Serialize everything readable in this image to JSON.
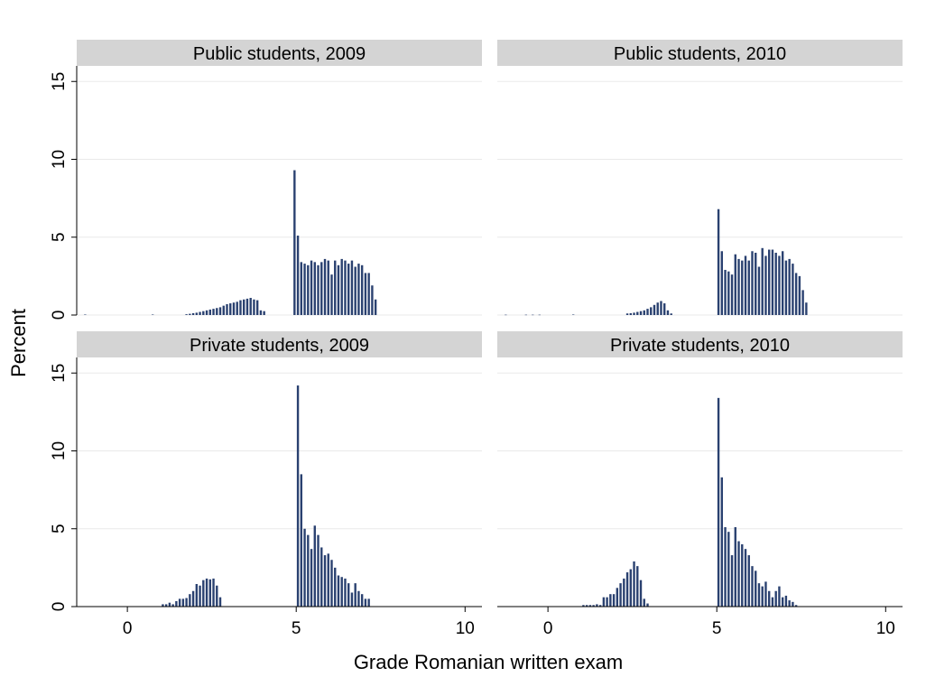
{
  "chart_data": {
    "type": "bar",
    "xlabel": "Grade Romanian written exam",
    "ylabel": "Percent",
    "xlim": [
      -1.5,
      10.5
    ],
    "ylim": [
      0,
      16
    ],
    "x_ticks": [
      "0",
      "5",
      "10"
    ],
    "y_ticks": [
      "0",
      "5",
      "10",
      "15"
    ],
    "colors": {
      "bar": "#2a4170",
      "strip": "#d4d4d4",
      "grid": "#eaeaea"
    },
    "panels": [
      {
        "title": "Public students, 2009",
        "x": [
          -1.25,
          0.75,
          1.75,
          1.85,
          1.95,
          2.05,
          2.15,
          2.25,
          2.35,
          2.45,
          2.55,
          2.65,
          2.75,
          2.85,
          2.95,
          3.05,
          3.15,
          3.25,
          3.35,
          3.45,
          3.55,
          3.65,
          3.75,
          3.85,
          3.95,
          4.05,
          4.15,
          4.25,
          4.35,
          4.45,
          4.55,
          4.65,
          4.75,
          4.85,
          4.95,
          5.05,
          5.15,
          5.25,
          5.35,
          5.45,
          5.55,
          5.65,
          5.75,
          5.85,
          5.95,
          6.05,
          6.15,
          6.25,
          6.35,
          6.45,
          6.55,
          6.65,
          6.75,
          6.85,
          6.95,
          7.05,
          7.15,
          7.25,
          7.35,
          7.45,
          7.55,
          7.65,
          7.75,
          7.85,
          7.95,
          8.05,
          8.15,
          8.25,
          8.35,
          8.45,
          8.55,
          8.65,
          8.75,
          8.85,
          8.95,
          9.05,
          9.15,
          9.25,
          9.35,
          9.45,
          9.55,
          9.65,
          9.75,
          9.85,
          9.95
        ],
        "values": [
          0.03,
          0.03,
          0.05,
          0.08,
          0.12,
          0.15,
          0.2,
          0.25,
          0.3,
          0.35,
          0.4,
          0.45,
          0.5,
          0.6,
          0.7,
          0.75,
          0.8,
          0.85,
          0.95,
          1.0,
          1.05,
          1.1,
          1.0,
          0.95,
          0.3,
          0.25,
          0.0,
          0.0,
          0.0,
          0.0,
          0.0,
          0.0,
          0.0,
          0.0,
          9.3,
          5.1,
          3.4,
          3.3,
          3.2,
          3.5,
          3.4,
          3.2,
          3.4,
          3.6,
          3.5,
          2.6,
          3.5,
          3.2,
          3.6,
          3.5,
          3.3,
          3.5,
          3.1,
          3.3,
          3.2,
          2.7,
          2.7,
          1.9,
          1.0,
          0.0,
          0.0,
          0.0,
          0.0,
          0.0,
          0.0,
          0.0,
          0.0,
          0.0,
          0.0,
          0.0,
          0.0,
          0.0,
          0.0,
          0.0,
          0.0,
          0.0,
          0.0,
          0.0,
          0.0,
          0.0,
          0.0,
          0.0,
          0.0,
          0.0,
          0.0
        ]
      },
      {
        "title": "Public students, 2010",
        "x": [
          -1.25,
          -0.65,
          -0.45,
          -0.25,
          0.75,
          2.35,
          2.45,
          2.55,
          2.65,
          2.75,
          2.85,
          2.95,
          3.05,
          3.15,
          3.25,
          3.35,
          3.45,
          3.55,
          3.65,
          3.75,
          3.85,
          3.95,
          4.05,
          4.15,
          4.25,
          4.35,
          4.45,
          4.55,
          4.65,
          4.75,
          4.85,
          4.95,
          5.05,
          5.15,
          5.25,
          5.35,
          5.45,
          5.55,
          5.65,
          5.75,
          5.85,
          5.95,
          6.05,
          6.15,
          6.25,
          6.35,
          6.45,
          6.55,
          6.65,
          6.75,
          6.85,
          6.95,
          7.05,
          7.15,
          7.25,
          7.35,
          7.45,
          7.55,
          7.65,
          7.75,
          7.85,
          7.95,
          8.05,
          8.15,
          8.25,
          8.35,
          8.45,
          8.55,
          8.65,
          8.75,
          8.85,
          8.95,
          9.05,
          9.15,
          9.25,
          9.35,
          9.45,
          9.55,
          9.65,
          9.75,
          9.85,
          9.95
        ],
        "values": [
          0.02,
          0.02,
          0.02,
          0.02,
          0.03,
          0.1,
          0.12,
          0.15,
          0.2,
          0.25,
          0.3,
          0.4,
          0.5,
          0.65,
          0.8,
          0.9,
          0.75,
          0.3,
          0.1,
          0.0,
          0.0,
          0.0,
          0.0,
          0.0,
          0.0,
          0.0,
          0.0,
          0.0,
          0.0,
          0.0,
          0.0,
          0.0,
          6.8,
          4.1,
          2.9,
          2.8,
          2.6,
          3.9,
          3.6,
          3.5,
          3.8,
          3.5,
          4.1,
          4.0,
          3.1,
          4.3,
          3.8,
          4.2,
          4.2,
          4.0,
          3.8,
          4.1,
          3.5,
          3.6,
          3.3,
          2.7,
          2.5,
          1.6,
          0.8,
          0.0,
          0.0,
          0.0,
          0.0,
          0.0,
          0.0,
          0.0,
          0.0,
          0.0,
          0.0,
          0.0,
          0.0,
          0.0,
          0.0,
          0.0,
          0.0,
          0.0,
          0.0,
          0.0,
          0.0,
          0.0,
          0.0,
          0.0
        ]
      },
      {
        "title": "Private students, 2009",
        "x": [
          1.05,
          1.15,
          1.25,
          1.35,
          1.45,
          1.55,
          1.65,
          1.75,
          1.85,
          1.95,
          2.05,
          2.15,
          2.25,
          2.35,
          2.45,
          2.55,
          2.65,
          2.75,
          2.85,
          2.95,
          3.05,
          3.15,
          3.25,
          3.35,
          3.45,
          3.55,
          3.65,
          3.75,
          3.85,
          3.95,
          4.05,
          4.15,
          4.25,
          4.35,
          4.45,
          4.55,
          4.65,
          4.75,
          4.85,
          4.95,
          5.05,
          5.15,
          5.25,
          5.35,
          5.45,
          5.55,
          5.65,
          5.75,
          5.85,
          5.95,
          6.05,
          6.15,
          6.25,
          6.35,
          6.45,
          6.55,
          6.65,
          6.75,
          6.85,
          6.95,
          7.05,
          7.15,
          7.25,
          7.35,
          7.45,
          7.55,
          7.65,
          7.75,
          7.85,
          7.95,
          8.05,
          8.15,
          8.25,
          8.35,
          8.45,
          8.55,
          8.65,
          8.75,
          8.85,
          8.95,
          9.05,
          9.15,
          9.25,
          9.35,
          9.45,
          9.55,
          9.65,
          9.75,
          9.85,
          9.95
        ],
        "values": [
          0.15,
          0.15,
          0.25,
          0.15,
          0.35,
          0.5,
          0.5,
          0.55,
          0.8,
          1.0,
          1.45,
          1.35,
          1.7,
          1.8,
          1.75,
          1.8,
          1.35,
          0.6,
          0.0,
          0.0,
          0.0,
          0.0,
          0.0,
          0.0,
          0.0,
          0.0,
          0.0,
          0.0,
          0.0,
          0.0,
          0.0,
          0.0,
          0.0,
          0.0,
          0.0,
          0.0,
          0.0,
          0.0,
          0.0,
          0.0,
          14.2,
          8.5,
          5.0,
          4.6,
          3.7,
          5.2,
          4.6,
          3.8,
          3.3,
          3.4,
          3.0,
          2.5,
          2.0,
          1.9,
          1.8,
          1.5,
          0.9,
          1.5,
          1.0,
          0.8,
          0.5,
          0.5,
          0.0,
          0.0,
          0.0,
          0.0,
          0.0,
          0.0,
          0.0,
          0.0,
          0.0,
          0.0,
          0.0,
          0.0,
          0.0,
          0.0,
          0.0,
          0.0,
          0.0,
          0.0,
          0.0,
          0.0,
          0.0,
          0.0,
          0.0,
          0.0,
          0.0,
          0.0,
          0.0,
          0.0
        ]
      },
      {
        "title": "Private students, 2010",
        "x": [
          1.05,
          1.15,
          1.25,
          1.35,
          1.45,
          1.55,
          1.65,
          1.75,
          1.85,
          1.95,
          2.05,
          2.15,
          2.25,
          2.35,
          2.45,
          2.55,
          2.65,
          2.75,
          2.85,
          2.95,
          3.05,
          3.15,
          3.25,
          3.35,
          3.45,
          3.55,
          3.65,
          3.75,
          3.85,
          3.95,
          4.05,
          4.15,
          4.25,
          4.35,
          4.45,
          4.55,
          4.65,
          4.75,
          4.85,
          4.95,
          5.05,
          5.15,
          5.25,
          5.35,
          5.45,
          5.55,
          5.65,
          5.75,
          5.85,
          5.95,
          6.05,
          6.15,
          6.25,
          6.35,
          6.45,
          6.55,
          6.65,
          6.75,
          6.85,
          6.95,
          7.05,
          7.15,
          7.25,
          7.35,
          7.45,
          7.55,
          7.65,
          7.75,
          7.85,
          7.95,
          8.05,
          8.15,
          8.25,
          8.35,
          8.45,
          8.55,
          8.65,
          8.75,
          8.85,
          8.95,
          9.05,
          9.15,
          9.25,
          9.35,
          9.45,
          9.55,
          9.65,
          9.75,
          9.85,
          9.95
        ],
        "values": [
          0.1,
          0.1,
          0.1,
          0.1,
          0.15,
          0.1,
          0.6,
          0.6,
          0.8,
          0.8,
          1.2,
          1.5,
          1.8,
          2.2,
          2.4,
          2.9,
          2.6,
          1.7,
          0.5,
          0.2,
          0.0,
          0.0,
          0.0,
          0.0,
          0.0,
          0.0,
          0.0,
          0.0,
          0.0,
          0.0,
          0.0,
          0.0,
          0.0,
          0.0,
          0.0,
          0.0,
          0.0,
          0.0,
          0.0,
          0.0,
          13.4,
          8.3,
          5.1,
          4.8,
          3.3,
          5.1,
          4.2,
          4.0,
          3.7,
          3.3,
          2.6,
          2.3,
          1.5,
          1.3,
          1.6,
          1.0,
          0.6,
          1.0,
          1.3,
          0.6,
          0.7,
          0.4,
          0.3,
          0.1,
          0.0,
          0.0,
          0.0,
          0.0,
          0.0,
          0.0,
          0.0,
          0.0,
          0.0,
          0.0,
          0.0,
          0.0,
          0.0,
          0.0,
          0.0,
          0.0,
          0.0,
          0.0,
          0.0,
          0.0,
          0.0,
          0.0,
          0.0,
          0.0,
          0.0,
          0.0
        ]
      }
    ]
  }
}
